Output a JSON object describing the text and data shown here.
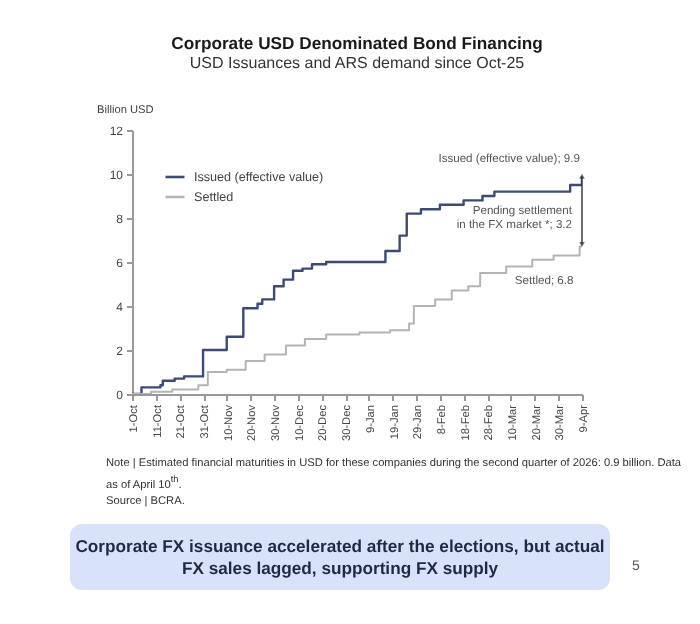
{
  "chart_data": {
    "type": "step",
    "title": "Corporate USD Denominated Bond Financing",
    "subtitle": "USD Issuances and ARS demand since Oct-25",
    "ylabel": "Billion USD",
    "xlim": [
      "2025-10-01",
      "2026-04-09"
    ],
    "xticks": [
      {
        "value": "2025-10-01",
        "label": "1-Oct"
      },
      {
        "value": "2025-10-11",
        "label": "11-Oct"
      },
      {
        "value": "2025-10-21",
        "label": "21-Oct"
      },
      {
        "value": "2025-10-31",
        "label": "31-Oct"
      },
      {
        "value": "2025-11-10",
        "label": "10-Nov"
      },
      {
        "value": "2025-11-20",
        "label": "20-Nov"
      },
      {
        "value": "2025-11-30",
        "label": "30-Nov"
      },
      {
        "value": "2025-12-10",
        "label": "10-Dec"
      },
      {
        "value": "2025-12-20",
        "label": "20-Dec"
      },
      {
        "value": "2025-12-30",
        "label": "30-Dec"
      },
      {
        "value": "2026-01-09",
        "label": "9-Jan"
      },
      {
        "value": "2026-01-19",
        "label": "19-Jan"
      },
      {
        "value": "2026-01-29",
        "label": "29-Jan"
      },
      {
        "value": "2026-02-08",
        "label": "8-Feb"
      },
      {
        "value": "2026-02-18",
        "label": "18-Feb"
      },
      {
        "value": "2026-02-28",
        "label": "28-Feb"
      },
      {
        "value": "2026-03-10",
        "label": "10-Mar"
      },
      {
        "value": "2026-03-20",
        "label": "20-Mar"
      },
      {
        "value": "2026-03-30",
        "label": "30-Mar"
      },
      {
        "value": "2026-04-09",
        "label": "9-Apr"
      }
    ],
    "ylim": [
      0,
      12
    ],
    "yticks": [
      0,
      2,
      4,
      6,
      8,
      10,
      12
    ],
    "legend": "top left",
    "series": [
      {
        "name": "Issued (effective value)",
        "color": "#3b4a7a",
        "x": [
          "2025-10-01",
          "2025-10-05",
          "2025-10-13",
          "2025-10-14",
          "2025-10-19",
          "2025-10-23",
          "2025-10-31",
          "2025-11-10",
          "2025-11-17",
          "2025-11-23",
          "2025-11-25",
          "2025-11-30",
          "2025-12-04",
          "2025-12-08",
          "2025-12-12",
          "2025-12-16",
          "2025-12-22",
          "2026-01-16",
          "2026-01-22",
          "2026-01-25",
          "2026-01-31",
          "2026-02-08",
          "2026-02-18",
          "2026-02-26",
          "2026-03-03",
          "2026-04-04",
          "2026-04-09"
        ],
        "values": [
          0,
          0.3,
          0.4,
          0.6,
          0.7,
          0.8,
          2.0,
          2.6,
          3.9,
          4.1,
          4.3,
          4.9,
          5.2,
          5.6,
          5.7,
          5.9,
          6.0,
          6.5,
          7.2,
          8.2,
          8.4,
          8.6,
          8.8,
          9.0,
          9.2,
          9.5,
          9.9
        ]
      },
      {
        "name": "Settled",
        "color": "#b4b4b4",
        "x": [
          "2025-10-01",
          "2025-10-09",
          "2025-10-18",
          "2025-10-29",
          "2025-11-02",
          "2025-11-10",
          "2025-11-18",
          "2025-11-26",
          "2025-12-05",
          "2025-12-13",
          "2025-12-22",
          "2026-01-05",
          "2026-01-18",
          "2026-01-26",
          "2026-01-28",
          "2026-02-06",
          "2026-02-13",
          "2026-02-20",
          "2026-02-25",
          "2026-03-08",
          "2026-03-19",
          "2026-03-28",
          "2026-04-08",
          "2026-04-09"
        ],
        "values": [
          0,
          0.1,
          0.2,
          0.4,
          1.0,
          1.1,
          1.5,
          1.8,
          2.2,
          2.5,
          2.7,
          2.8,
          2.9,
          3.2,
          4.0,
          4.3,
          4.7,
          4.9,
          5.5,
          5.8,
          6.1,
          6.3,
          6.7,
          6.8
        ]
      }
    ],
    "annotations": [
      {
        "text": "Issued (effective value); 9.9",
        "x": "2026-04-09",
        "y": 9.9
      },
      {
        "text": "Settled; 6.8",
        "x": "2026-03-24",
        "y": 6.1
      },
      "Pending settlement\nin the FX market *; 3.2",
      "Note | Estimated financial maturities in USD for these companies during the second quarter of 2026: 0.9 billion. Data as of April 10$^{th}$.",
      "Source | BCRA.",
      "Corporate FX issuance accelerated after the elections, but actual FX sales lagged, supporting FX supply",
      "5"
    ]
  }
}
